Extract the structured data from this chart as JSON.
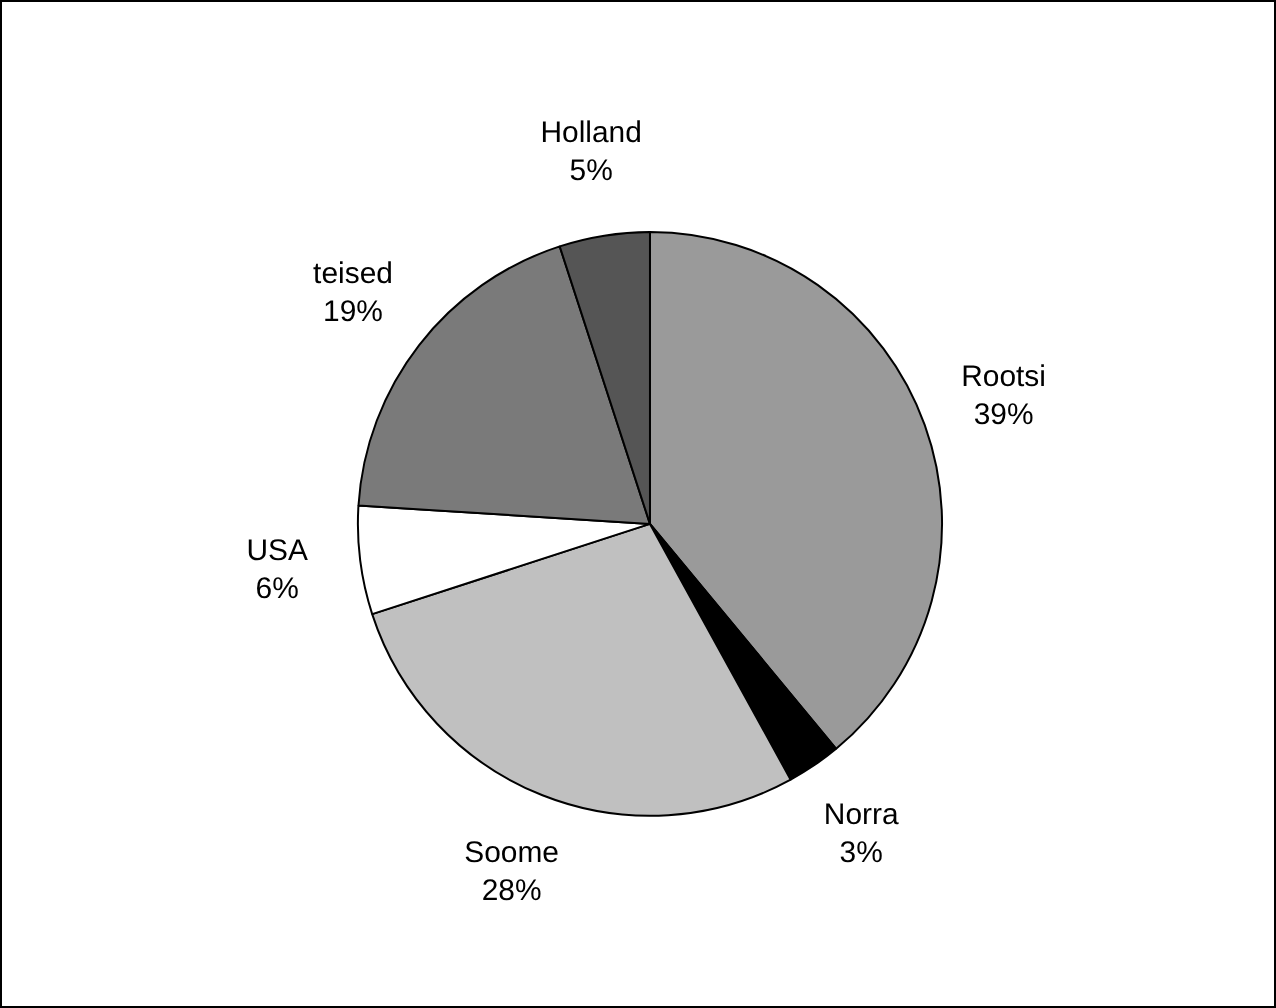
{
  "chart_data": {
    "type": "pie",
    "categories": [
      "Rootsi",
      "Norra",
      "Soome",
      "USA",
      "teised",
      "Holland"
    ],
    "values": [
      39,
      3,
      28,
      6,
      19,
      5
    ],
    "value_labels": [
      "39%",
      "3%",
      "28%",
      "6%",
      "19%",
      "5%"
    ],
    "colors": [
      "#9a9a9a",
      "#000000",
      "#c0c0c0",
      "#ffffff",
      "#7a7a7a",
      "#555555"
    ],
    "legend": false
  }
}
